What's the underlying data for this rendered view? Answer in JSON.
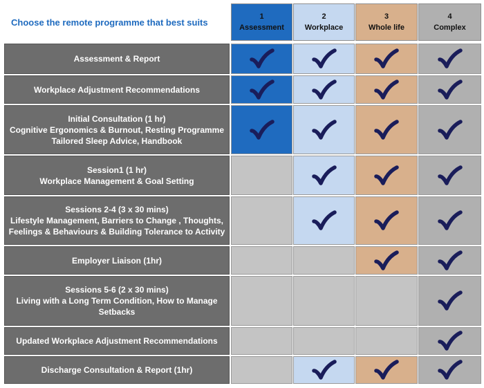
{
  "title": "Choose the remote programme that best suits",
  "colors": {
    "assessment": "#1f6bbf",
    "workplace": "#c5d8f0",
    "whole_life": "#d8b08c",
    "complex": "#b0b0b0",
    "empty": "#c4c4c4",
    "check": "#1a1d5a",
    "label_bg": "#6d6d6d"
  },
  "columns": [
    {
      "number": "1",
      "label": "Assessment",
      "color_key": "assessment"
    },
    {
      "number": "2",
      "label": "Workplace",
      "color_key": "workplace"
    },
    {
      "number": "3",
      "label": "Whole life",
      "color_key": "whole_life"
    },
    {
      "number": "4",
      "label": "Complex",
      "color_key": "complex"
    }
  ],
  "rows": [
    {
      "lines": [
        "Assessment & Report"
      ],
      "checks": [
        true,
        true,
        true,
        true
      ]
    },
    {
      "lines": [
        "Workplace Adjustment Recommendations"
      ],
      "checks": [
        true,
        true,
        true,
        true
      ]
    },
    {
      "lines": [
        "Initial Consultation  (1 hr)",
        "Cognitive Ergonomics & Burnout, Resting Programme",
        "Tailored Sleep Advice, Handbook"
      ],
      "checks": [
        true,
        true,
        true,
        true
      ]
    },
    {
      "lines": [
        "Session1  (1 hr)",
        "Workplace Management & Goal Setting"
      ],
      "checks": [
        false,
        true,
        true,
        true
      ]
    },
    {
      "lines": [
        "Sessions 2-4  (3 x 30 mins)",
        "Lifestyle Management, Barriers to Change , Thoughts,",
        "Feelings  & Behaviours & Building Tolerance to Activity"
      ],
      "checks": [
        false,
        true,
        true,
        true
      ]
    },
    {
      "lines": [
        "Employer Liaison  (1hr)"
      ],
      "checks": [
        false,
        false,
        true,
        true
      ]
    },
    {
      "lines": [
        "Sessions 5-6  (2 x 30 mins)",
        "Living with a Long Term Condition, How to Manage",
        "Setbacks"
      ],
      "checks": [
        false,
        false,
        false,
        true
      ]
    },
    {
      "lines": [
        "Updated Workplace Adjustment Recommendations"
      ],
      "checks": [
        false,
        false,
        false,
        true
      ]
    },
    {
      "lines": [
        "Discharge Consultation & Report  (1hr)"
      ],
      "checks": [
        false,
        true,
        true,
        true
      ]
    }
  ]
}
